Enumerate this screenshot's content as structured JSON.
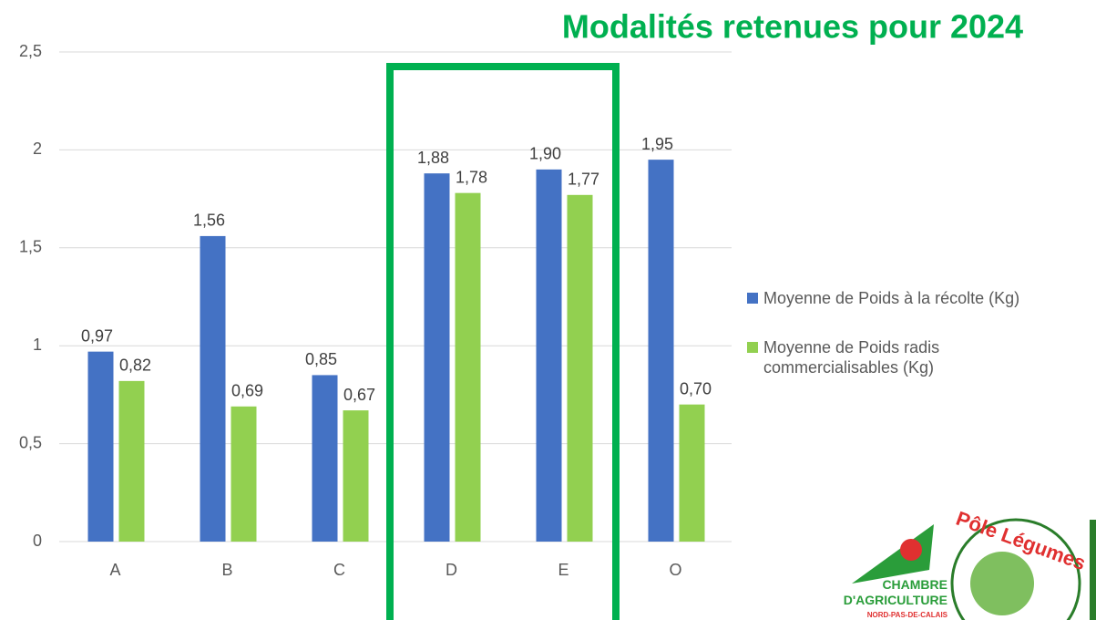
{
  "chart_data": {
    "type": "bar",
    "title": "Modalités retenues pour 2024",
    "categories": [
      "A",
      "B",
      "C",
      "D",
      "E",
      "O"
    ],
    "series": [
      {
        "name": "Moyenne de Poids à la récolte (Kg)",
        "color": "#4472c4",
        "values": [
          0.97,
          1.56,
          0.85,
          1.88,
          1.9,
          1.95
        ],
        "value_labels": [
          "0,97",
          "1,56",
          "0,85",
          "1,88",
          "1,90",
          "1,95"
        ]
      },
      {
        "name": "Moyenne de Poids radis commercialisables (Kg)",
        "color": "#92d050",
        "values": [
          0.82,
          0.69,
          0.67,
          1.78,
          1.77,
          0.7
        ],
        "value_labels": [
          "0,82",
          "0,69",
          "0,67",
          "1,78",
          "1,77",
          "0,70"
        ]
      }
    ],
    "ylim": [
      0,
      2.5
    ],
    "yticks": [
      0,
      {
        "value": 0.5,
        "label": "0,5"
      },
      1,
      {
        "value": 1.5,
        "label": "1,5"
      },
      2,
      {
        "value": 2.5,
        "label": "2,5"
      }
    ],
    "grid": true,
    "legend": "right",
    "highlight_color": "#00b050"
  },
  "logos": [
    "CHAMBRE",
    "D'AGRICULTURE",
    "NORD-PAS-DE-CALAIS",
    "Pôle Légumes"
  ]
}
